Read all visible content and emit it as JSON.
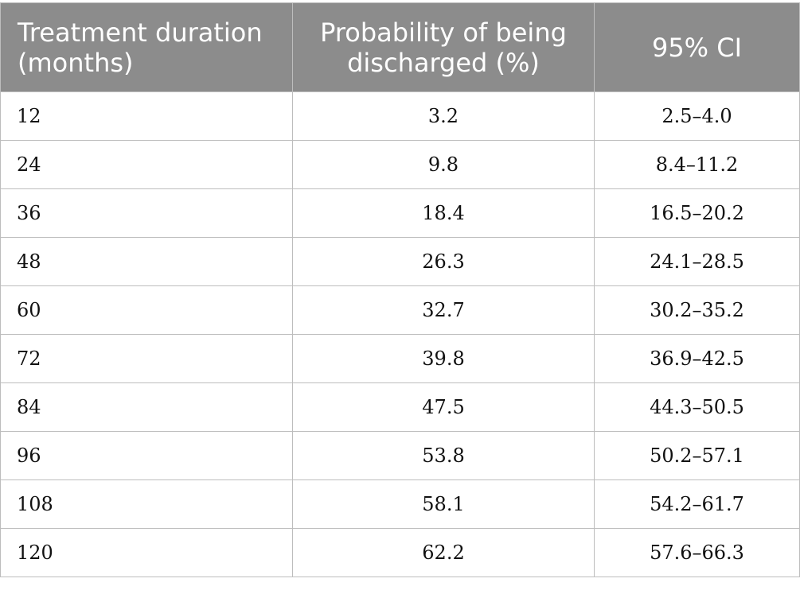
{
  "table": {
    "headers": {
      "duration": "Treatment duration (months)",
      "probability": "Probability of being discharged (%)",
      "ci": "95% CI"
    },
    "rows": [
      {
        "duration": "12",
        "probability": "3.2",
        "ci": "2.5–4.0"
      },
      {
        "duration": "24",
        "probability": "9.8",
        "ci": "8.4–11.2"
      },
      {
        "duration": "36",
        "probability": "18.4",
        "ci": "16.5–20.2"
      },
      {
        "duration": "48",
        "probability": "26.3",
        "ci": "24.1–28.5"
      },
      {
        "duration": "60",
        "probability": "32.7",
        "ci": "30.2–35.2"
      },
      {
        "duration": "72",
        "probability": "39.8",
        "ci": "36.9–42.5"
      },
      {
        "duration": "84",
        "probability": "47.5",
        "ci": "44.3–50.5"
      },
      {
        "duration": "96",
        "probability": "53.8",
        "ci": "50.2–57.1"
      },
      {
        "duration": "108",
        "probability": "58.1",
        "ci": "54.2–61.7"
      },
      {
        "duration": "120",
        "probability": "62.2",
        "ci": "57.6–66.3"
      }
    ]
  },
  "colors": {
    "header_bg": "#8c8c8c",
    "header_text": "#ffffff",
    "grid": "#bdbdbd"
  }
}
